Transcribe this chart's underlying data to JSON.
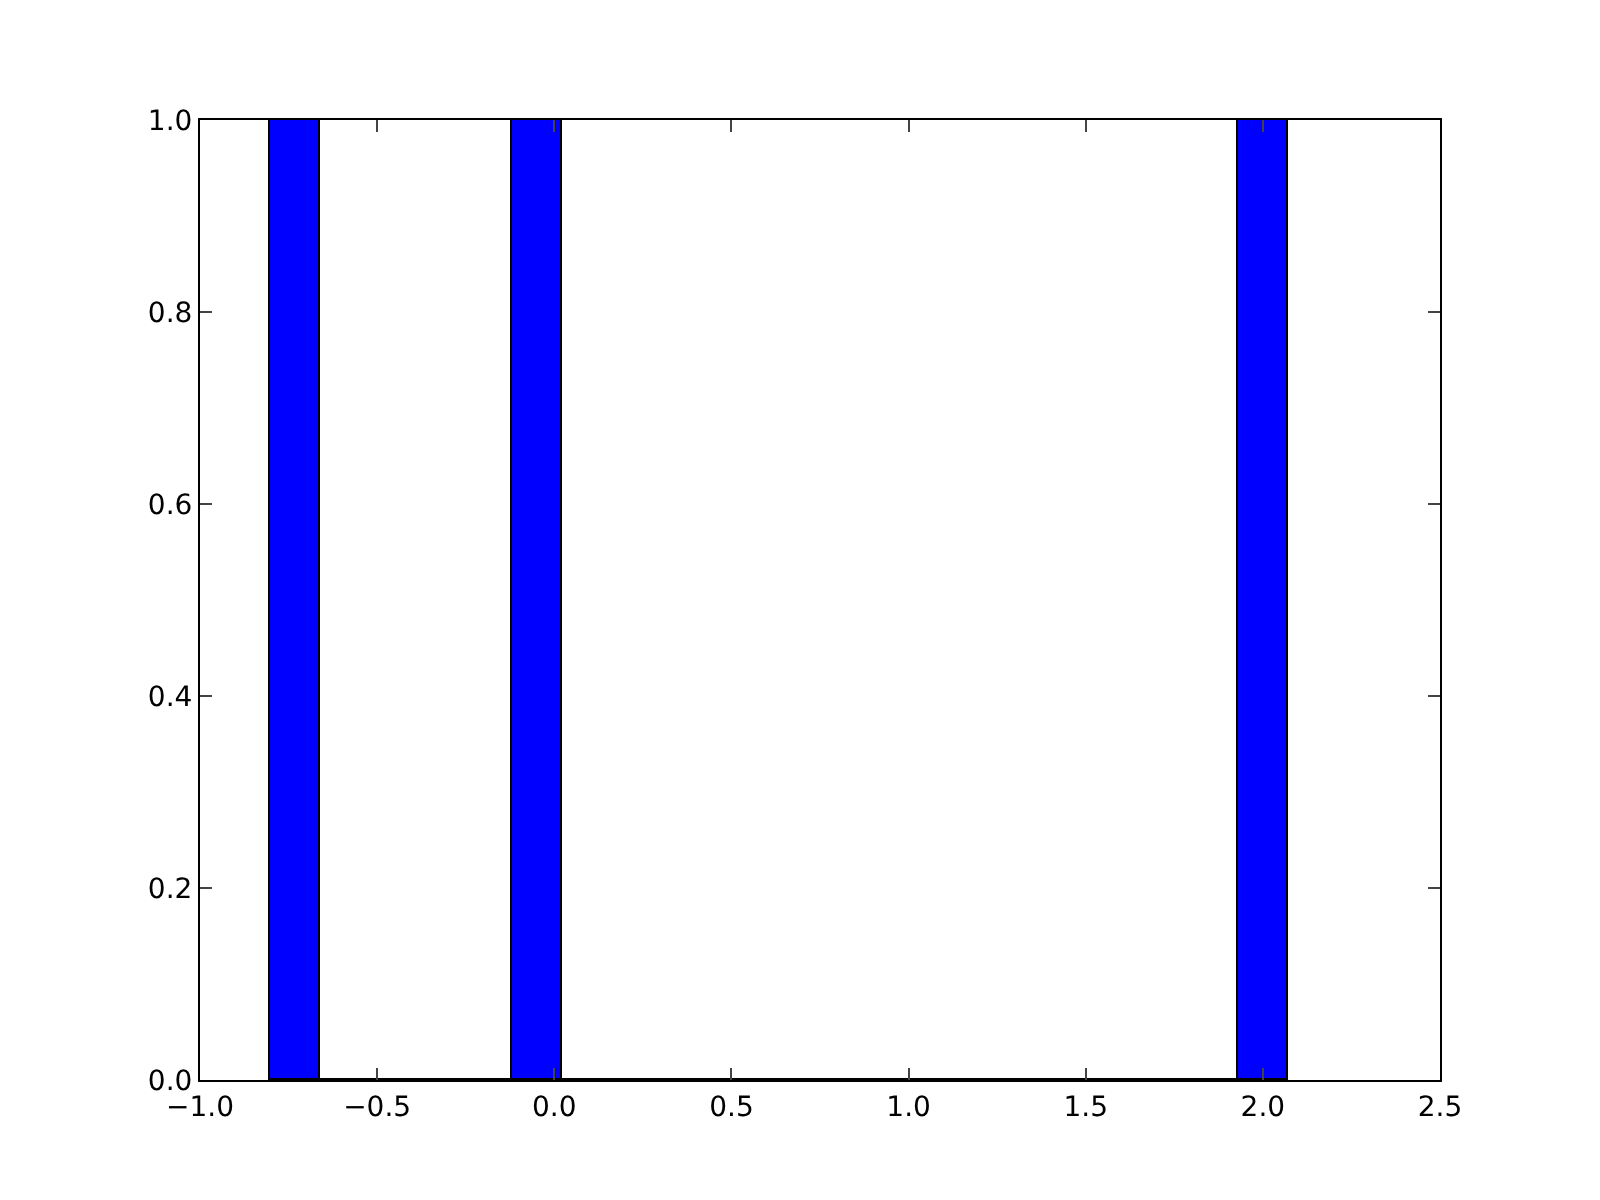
{
  "chart_data": {
    "type": "histogram",
    "bins": [
      -0.8,
      -0.66,
      -0.12,
      0.02,
      1.93,
      2.07
    ],
    "values": [
      1,
      0,
      1,
      0,
      1
    ],
    "color": "#0000ff",
    "xlim": [
      -1.0,
      2.5
    ],
    "xticks": [
      {
        "value": -1.0,
        "label": "−1.0"
      },
      {
        "value": -0.5,
        "label": "−0.5"
      },
      {
        "value": 0,
        "label": "0.0"
      },
      {
        "value": 0.5,
        "label": "0.5"
      },
      {
        "value": 1.0,
        "label": "1.0"
      },
      {
        "value": 1.5,
        "label": "1.5"
      },
      {
        "value": 2.0,
        "label": "2.0"
      },
      {
        "value": 2.5,
        "label": "2.5"
      }
    ],
    "ylim": [
      0,
      1.0
    ],
    "yticks": [
      {
        "value": 0,
        "label": "0.0"
      },
      {
        "value": 0.2,
        "label": "0.2"
      },
      {
        "value": 0.4,
        "label": "0.4"
      },
      {
        "value": 0.6,
        "label": "0.6"
      },
      {
        "value": 0.8,
        "label": "0.8"
      },
      {
        "value": 1.0,
        "label": "1.0"
      }
    ],
    "grid": false
  }
}
